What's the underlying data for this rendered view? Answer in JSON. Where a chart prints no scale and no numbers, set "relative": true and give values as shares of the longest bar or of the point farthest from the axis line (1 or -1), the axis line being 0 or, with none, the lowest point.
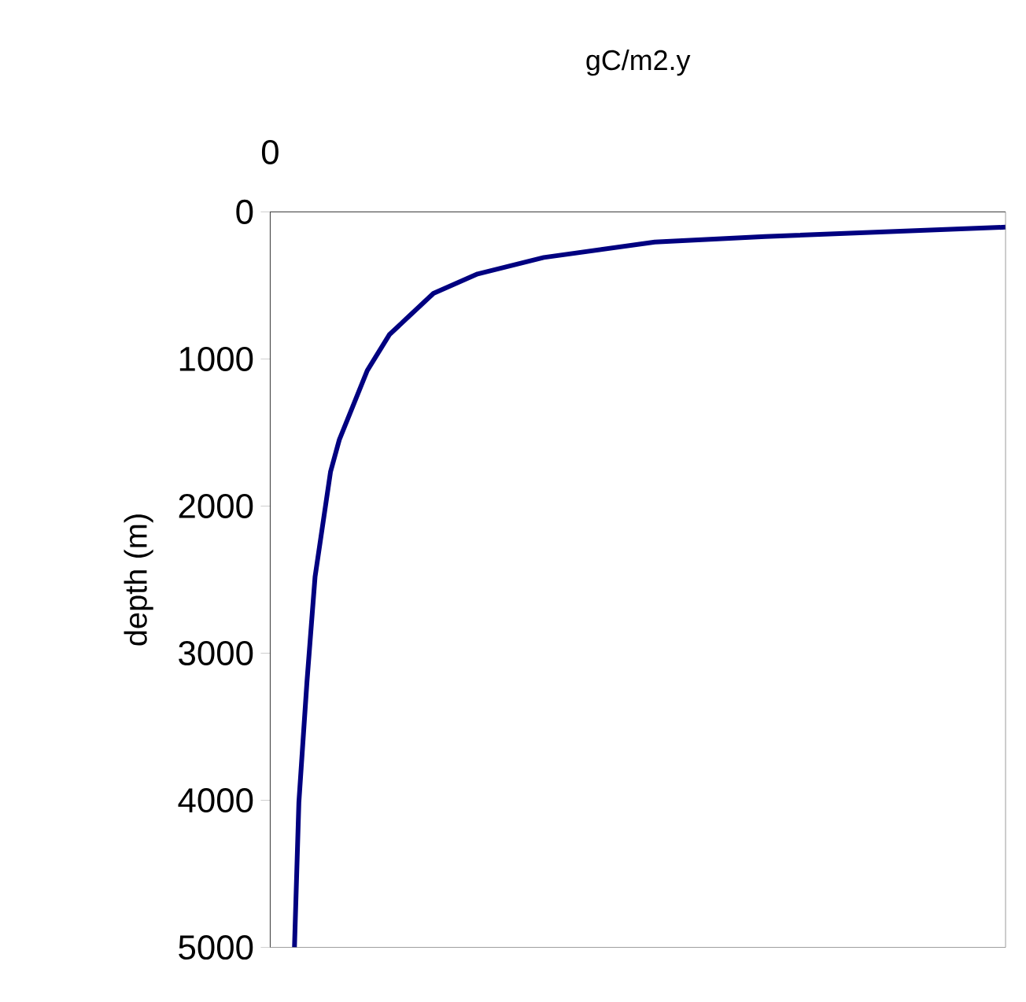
{
  "chart_data": {
    "type": "line",
    "orientation": "horizontal",
    "xlabel": "gC/m2.y",
    "ylabel": "depth (m)",
    "relative": true,
    "annotations": [
      "0"
    ],
    "ylim": [
      5000,
      0
    ],
    "yticks": [
      0,
      1000,
      2000,
      3000,
      4000,
      5000
    ],
    "marker": "none",
    "line_style": "solid",
    "series": [
      {
        "color": "#000080",
        "x": [
          5000,
          4014,
          3194,
          2481,
          1768,
          1549,
          1079,
          835,
          554,
          422,
          310,
          205,
          168,
          104
        ],
        "values": [
          0.033,
          0.039,
          0.05,
          0.061,
          0.082,
          0.094,
          0.132,
          0.162,
          0.222,
          0.282,
          0.372,
          0.523,
          0.673,
          1
        ]
      }
    ]
  }
}
